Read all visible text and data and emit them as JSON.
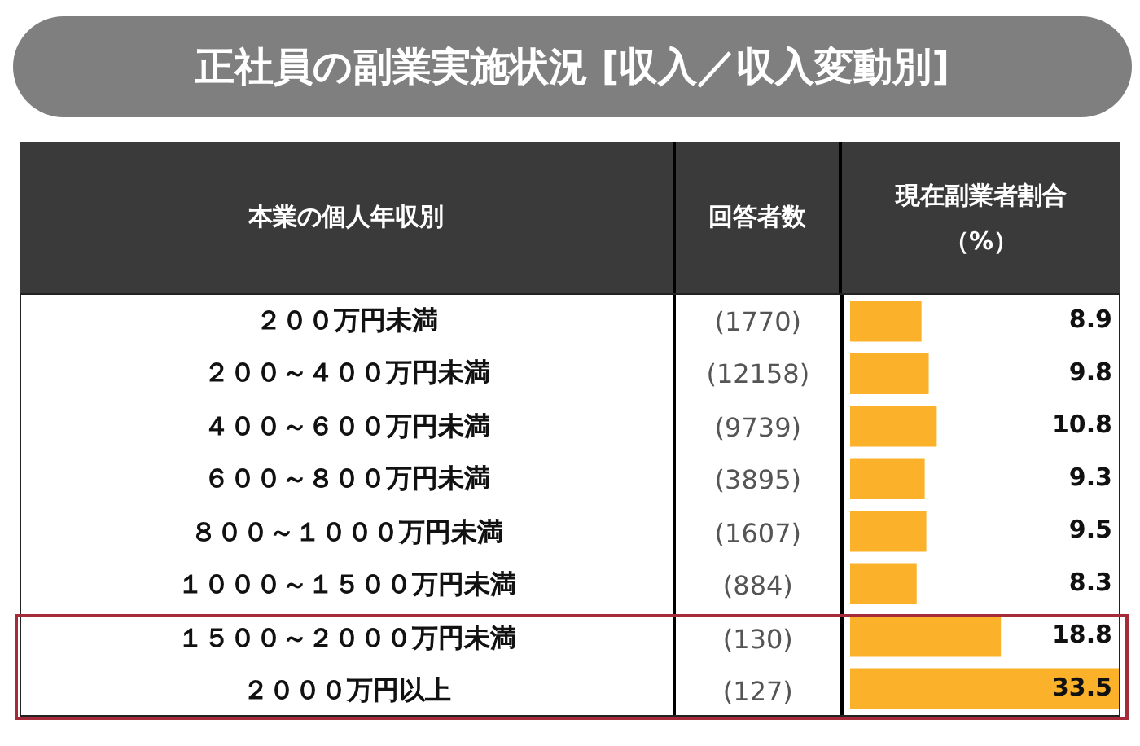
{
  "chart_data": {
    "type": "bar",
    "orientation": "horizontal",
    "title": "正社員の副業実施状況 [収入／収入変動別]",
    "ylabel": "本業の個人年収別",
    "y2label": "回答者数",
    "xlabel": "現在副業者割合（%）",
    "categories": [
      "２００万円未満",
      "２００～４００万円未満",
      "４００～６００万円未満",
      "６００～８００万円未満",
      "８００～１０００万円未満",
      "１０００～１５００万円未満",
      "１５００～２０００万円未満",
      "２０００万円以上"
    ],
    "y2_categories": [
      "(1770)",
      "(12158)",
      "(9739)",
      "(3895)",
      "(1607)",
      "(884)",
      "(130)",
      "(127)"
    ],
    "values": [
      8.9,
      9.8,
      10.8,
      9.3,
      9.5,
      8.3,
      18.8,
      33.5
    ],
    "color": "#fbb12a",
    "data_labels": true
  }
}
